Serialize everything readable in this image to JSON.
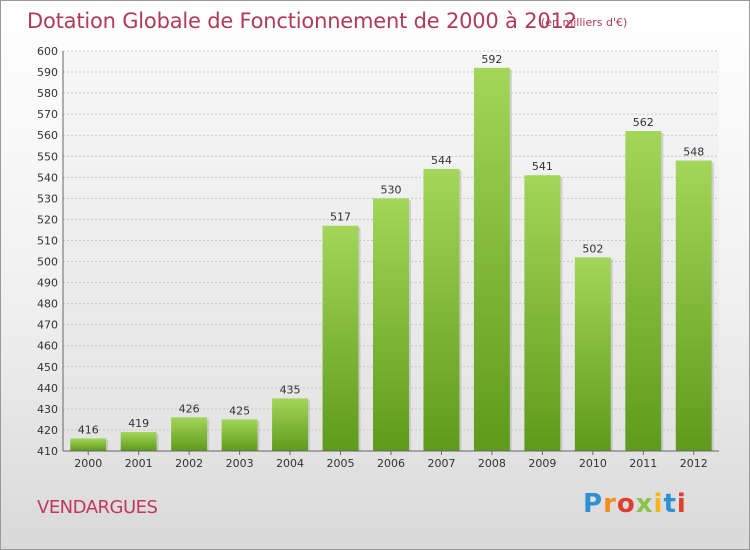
{
  "chart_data": {
    "type": "bar",
    "title": "Dotation Globale de Fonctionnement de 2000 à 2012",
    "subtitle": "(en milliers d'€)",
    "categories": [
      "2000",
      "2001",
      "2002",
      "2003",
      "2004",
      "2005",
      "2006",
      "2007",
      "2008",
      "2009",
      "2010",
      "2011",
      "2012"
    ],
    "values": [
      416,
      419,
      426,
      425,
      435,
      517,
      530,
      544,
      592,
      541,
      502,
      562,
      548
    ],
    "ylim": [
      410,
      600
    ],
    "ytick_step": 10,
    "grid": true,
    "bar_color": "#7cb82f",
    "xlabel": "",
    "ylabel": ""
  },
  "footer": {
    "town": "VENDARGUES",
    "logo_letters": [
      "P",
      "r",
      "o",
      "x",
      "i",
      "t",
      "i"
    ]
  }
}
